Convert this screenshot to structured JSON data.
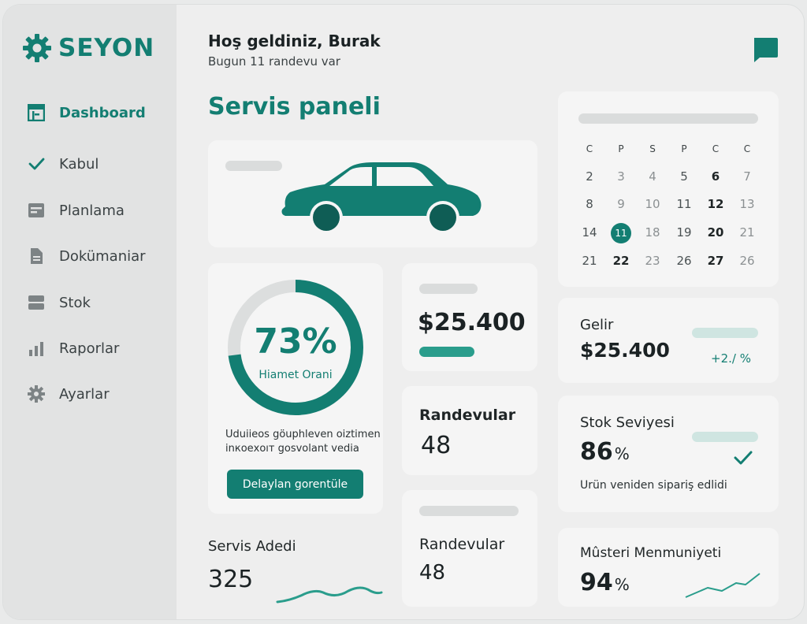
{
  "brand": {
    "name": "SEYON"
  },
  "sidebar": {
    "items": [
      {
        "label": "Dashboard",
        "icon": "dashboard-icon",
        "active": true
      },
      {
        "label": "Kabul",
        "icon": "check-icon"
      },
      {
        "label": "Planlama",
        "icon": "planning-icon"
      },
      {
        "label": "Dokümaniar",
        "icon": "document-icon"
      },
      {
        "label": "Stok",
        "icon": "stock-icon"
      },
      {
        "label": "Raporlar",
        "icon": "bar-chart-icon"
      },
      {
        "label": "Ayarlar",
        "icon": "gear-icon"
      }
    ]
  },
  "header": {
    "greeting": "Hoş geldiniz, Burak",
    "subtitle": "Bugun 11 randevu var",
    "page_title": "Servis paneli"
  },
  "gauge": {
    "percent": 73,
    "value_text": "73%",
    "label": "Hiamet Orani",
    "desc_line1": "Uduiieos göuphleven oiztimen",
    "desc_line2": "inкoeхoıт gosvolant vedia",
    "button": "Delaylan gorentüle"
  },
  "amount_card": {
    "value": "$25.400"
  },
  "randevu_card_1": {
    "label": "Randevular",
    "value": "48"
  },
  "randevu_card_2": {
    "label": "Randevular",
    "value": "48"
  },
  "servis_card": {
    "label": "Servis Adedi",
    "value": "325"
  },
  "calendar": {
    "weekdays": [
      "C",
      "P",
      "S",
      "P",
      "C",
      "C"
    ],
    "rows": [
      [
        "2",
        "3",
        "4",
        "5",
        "6",
        "7"
      ],
      [
        "8",
        "9",
        "10",
        "11",
        "12",
        "13"
      ],
      [
        "14",
        "11",
        "18",
        "19",
        "20",
        "21"
      ],
      [
        "21",
        "22",
        "23",
        "26",
        "27",
        "26"
      ]
    ],
    "selected": "11"
  },
  "gelir": {
    "label": "Gelir",
    "value": "$25.400",
    "change": "+2./ %"
  },
  "stok": {
    "label": "Stok Seviyesi",
    "value": "86",
    "unit": "%",
    "note": "Urün veniden sipariş edlidi"
  },
  "musteri": {
    "label": "Mûsteri Menmuniyeti",
    "value": "94",
    "unit": "%"
  },
  "colors": {
    "accent": "#137e72",
    "accent_light": "#cfe5e1",
    "card": "#f5f5f5"
  }
}
